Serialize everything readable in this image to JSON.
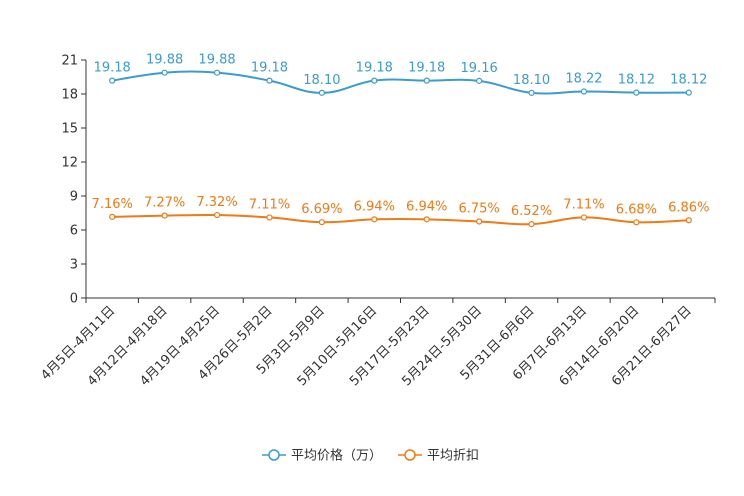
{
  "chart_data": {
    "type": "line",
    "title": "",
    "xlabel": "",
    "ylabel": "",
    "categories": [
      "4月5日-4月11日",
      "4月12日-4月18日",
      "4月19日-4月25日",
      "4月26日-5月2日",
      "5月3日-5月9日",
      "5月10日-5月16日",
      "5月17日-5月23日",
      "5月24日-5月30日",
      "5月31日-6月6日",
      "6月7日-6月13日",
      "6月14日-6月20日",
      "6月21日-6月27日"
    ],
    "ylim": [
      0,
      21
    ],
    "yticks": [
      0,
      3,
      6,
      9,
      12,
      15,
      18,
      21
    ],
    "series": [
      {
        "name": "平均价格（万）",
        "color": "#3a9ccf",
        "values": [
          19.18,
          19.88,
          19.88,
          19.18,
          18.1,
          19.18,
          19.18,
          19.16,
          18.1,
          18.22,
          18.12,
          18.12
        ],
        "labels": [
          "19.18",
          "19.88",
          "19.88",
          "19.18",
          "18.10",
          "19.18",
          "19.18",
          "19.16",
          "18.10",
          "18.22",
          "18.12",
          "18.12"
        ]
      },
      {
        "name": "平均折扣",
        "color": "#f07a14",
        "values": [
          7.16,
          7.27,
          7.32,
          7.11,
          6.69,
          6.94,
          6.94,
          6.75,
          6.52,
          7.11,
          6.68,
          6.86
        ],
        "labels": [
          "7.16%",
          "7.27%",
          "7.32%",
          "7.11%",
          "6.69%",
          "6.94%",
          "6.94%",
          "6.75%",
          "6.52%",
          "7.11%",
          "6.68%",
          "6.86%"
        ]
      }
    ],
    "legend_position": "bottom-center"
  }
}
